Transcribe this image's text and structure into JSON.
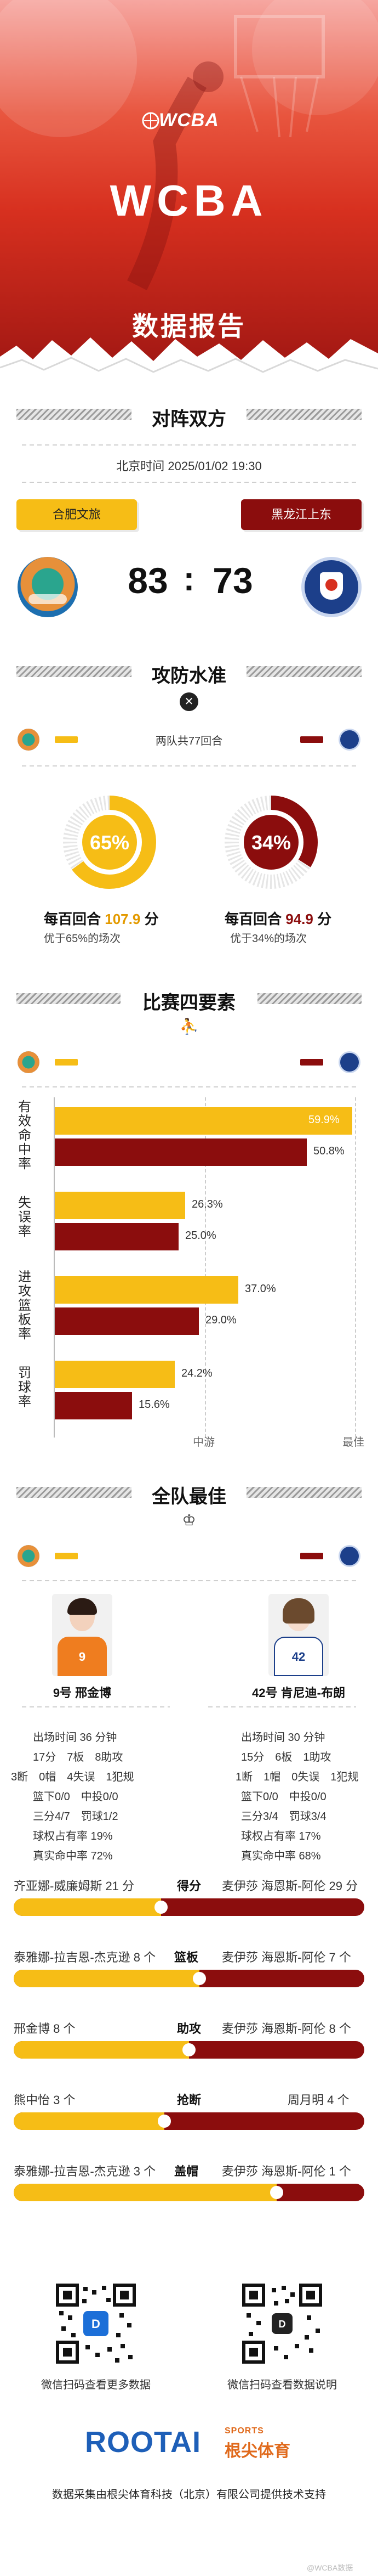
{
  "hero": {
    "logo_text": "WCBA",
    "title": "WCBA",
    "subtitle": "数据报告",
    "colors": {
      "red": "#d7301f",
      "dark_red": "#8b0d0d",
      "yellow": "#f6bd16"
    }
  },
  "matchup": {
    "section_title": "对阵双方",
    "datetime": "北京时间 2025/01/02 19:30",
    "home": {
      "name": "合肥文旅",
      "score": "83",
      "color": "#f6bd16"
    },
    "away": {
      "name": "黑龙江上东",
      "score": "73",
      "color": "#8b0d0d"
    },
    "separator": ":"
  },
  "offense_defense": {
    "section_title": "攻防水准",
    "rounds_note": "两队共77回合",
    "home": {
      "pct_label": "65%",
      "pct": 65,
      "per100_prefix": "每百回合",
      "per100_value": "107.9",
      "per100_suffix": "分",
      "note": "优于65%的场次"
    },
    "away": {
      "pct_label": "34%",
      "pct": 34,
      "per100_prefix": "每百回合",
      "per100_value": "94.9",
      "per100_suffix": "分",
      "note": "优于34%的场次"
    }
  },
  "four_factors": {
    "section_title": "比赛四要素",
    "factors": [
      {
        "label": "有效命中率",
        "home_label": "59.9%",
        "home": 59.9,
        "away_label": "50.8%",
        "away": 50.8
      },
      {
        "label": "失误率",
        "home_label": "26.3%",
        "home": 26.3,
        "away_label": "25.0%",
        "away": 25.0
      },
      {
        "label": "进攻篮板率",
        "home_label": "37.0%",
        "home": 37.0,
        "away_label": "29.0%",
        "away": 29.0
      },
      {
        "label": "罚球率",
        "home_label": "24.2%",
        "home": 24.2,
        "away_label": "15.6%",
        "away": 15.6
      }
    ],
    "axis_mid": "中游",
    "axis_max": "最佳"
  },
  "team_best": {
    "section_title": "全队最佳",
    "home_player": {
      "name": "9号 邢金博",
      "jersey": "9",
      "lines": [
        "出场时间 36 分钟",
        "17分　7板　8助攻",
        "3断　0帽　4失误　1犯规",
        "篮下0/0　中投0/0",
        "三分4/7　罚球1/2",
        "球权占有率 19%",
        "真实命中率 72%"
      ]
    },
    "away_player": {
      "name": "42号 肯尼迪-布朗",
      "jersey": "42",
      "lines": [
        "出场时间 30 分钟",
        "15分　6板　1助攻",
        "1断　1帽　0失误　1犯规",
        "篮下0/0　中投0/0",
        "三分3/4　罚球3/4",
        "球权占有率 17%",
        "真实命中率 68%"
      ]
    },
    "leaders": [
      {
        "category": "得分",
        "home_name": "齐亚娜-威廉姆斯 21 分",
        "away_name": "麦伊莎 海恩斯-阿伦 29 分",
        "home_share": 0.42
      },
      {
        "category": "篮板",
        "home_name": "泰雅娜-拉吉恩-杰克逊 8 个",
        "away_name": "麦伊莎 海恩斯-阿伦 7 个",
        "home_share": 0.53
      },
      {
        "category": "助攻",
        "home_name": "邢金博 8 个",
        "away_name": "麦伊莎 海恩斯-阿伦 8 个",
        "home_share": 0.5
      },
      {
        "category": "抢断",
        "home_name": "熊中怡 3 个",
        "away_name": "周月明 4 个",
        "home_share": 0.43
      },
      {
        "category": "盖帽",
        "home_name": "泰雅娜-拉吉恩-杰克逊 3 个",
        "away_name": "麦伊莎 海恩斯-阿伦 1 个",
        "home_share": 0.75
      }
    ]
  },
  "footer": {
    "qr_left_caption": "微信扫码查看更多数据",
    "qr_right_caption": "微信扫码查看数据说明",
    "brand_en": "ROOTAI",
    "brand_sports": "SPORTS",
    "brand_cn": "根尖体育",
    "credit": "数据采集由根尖体育科技（北京）有限公司提供技术支持",
    "watermark": "@WCBA数据"
  }
}
